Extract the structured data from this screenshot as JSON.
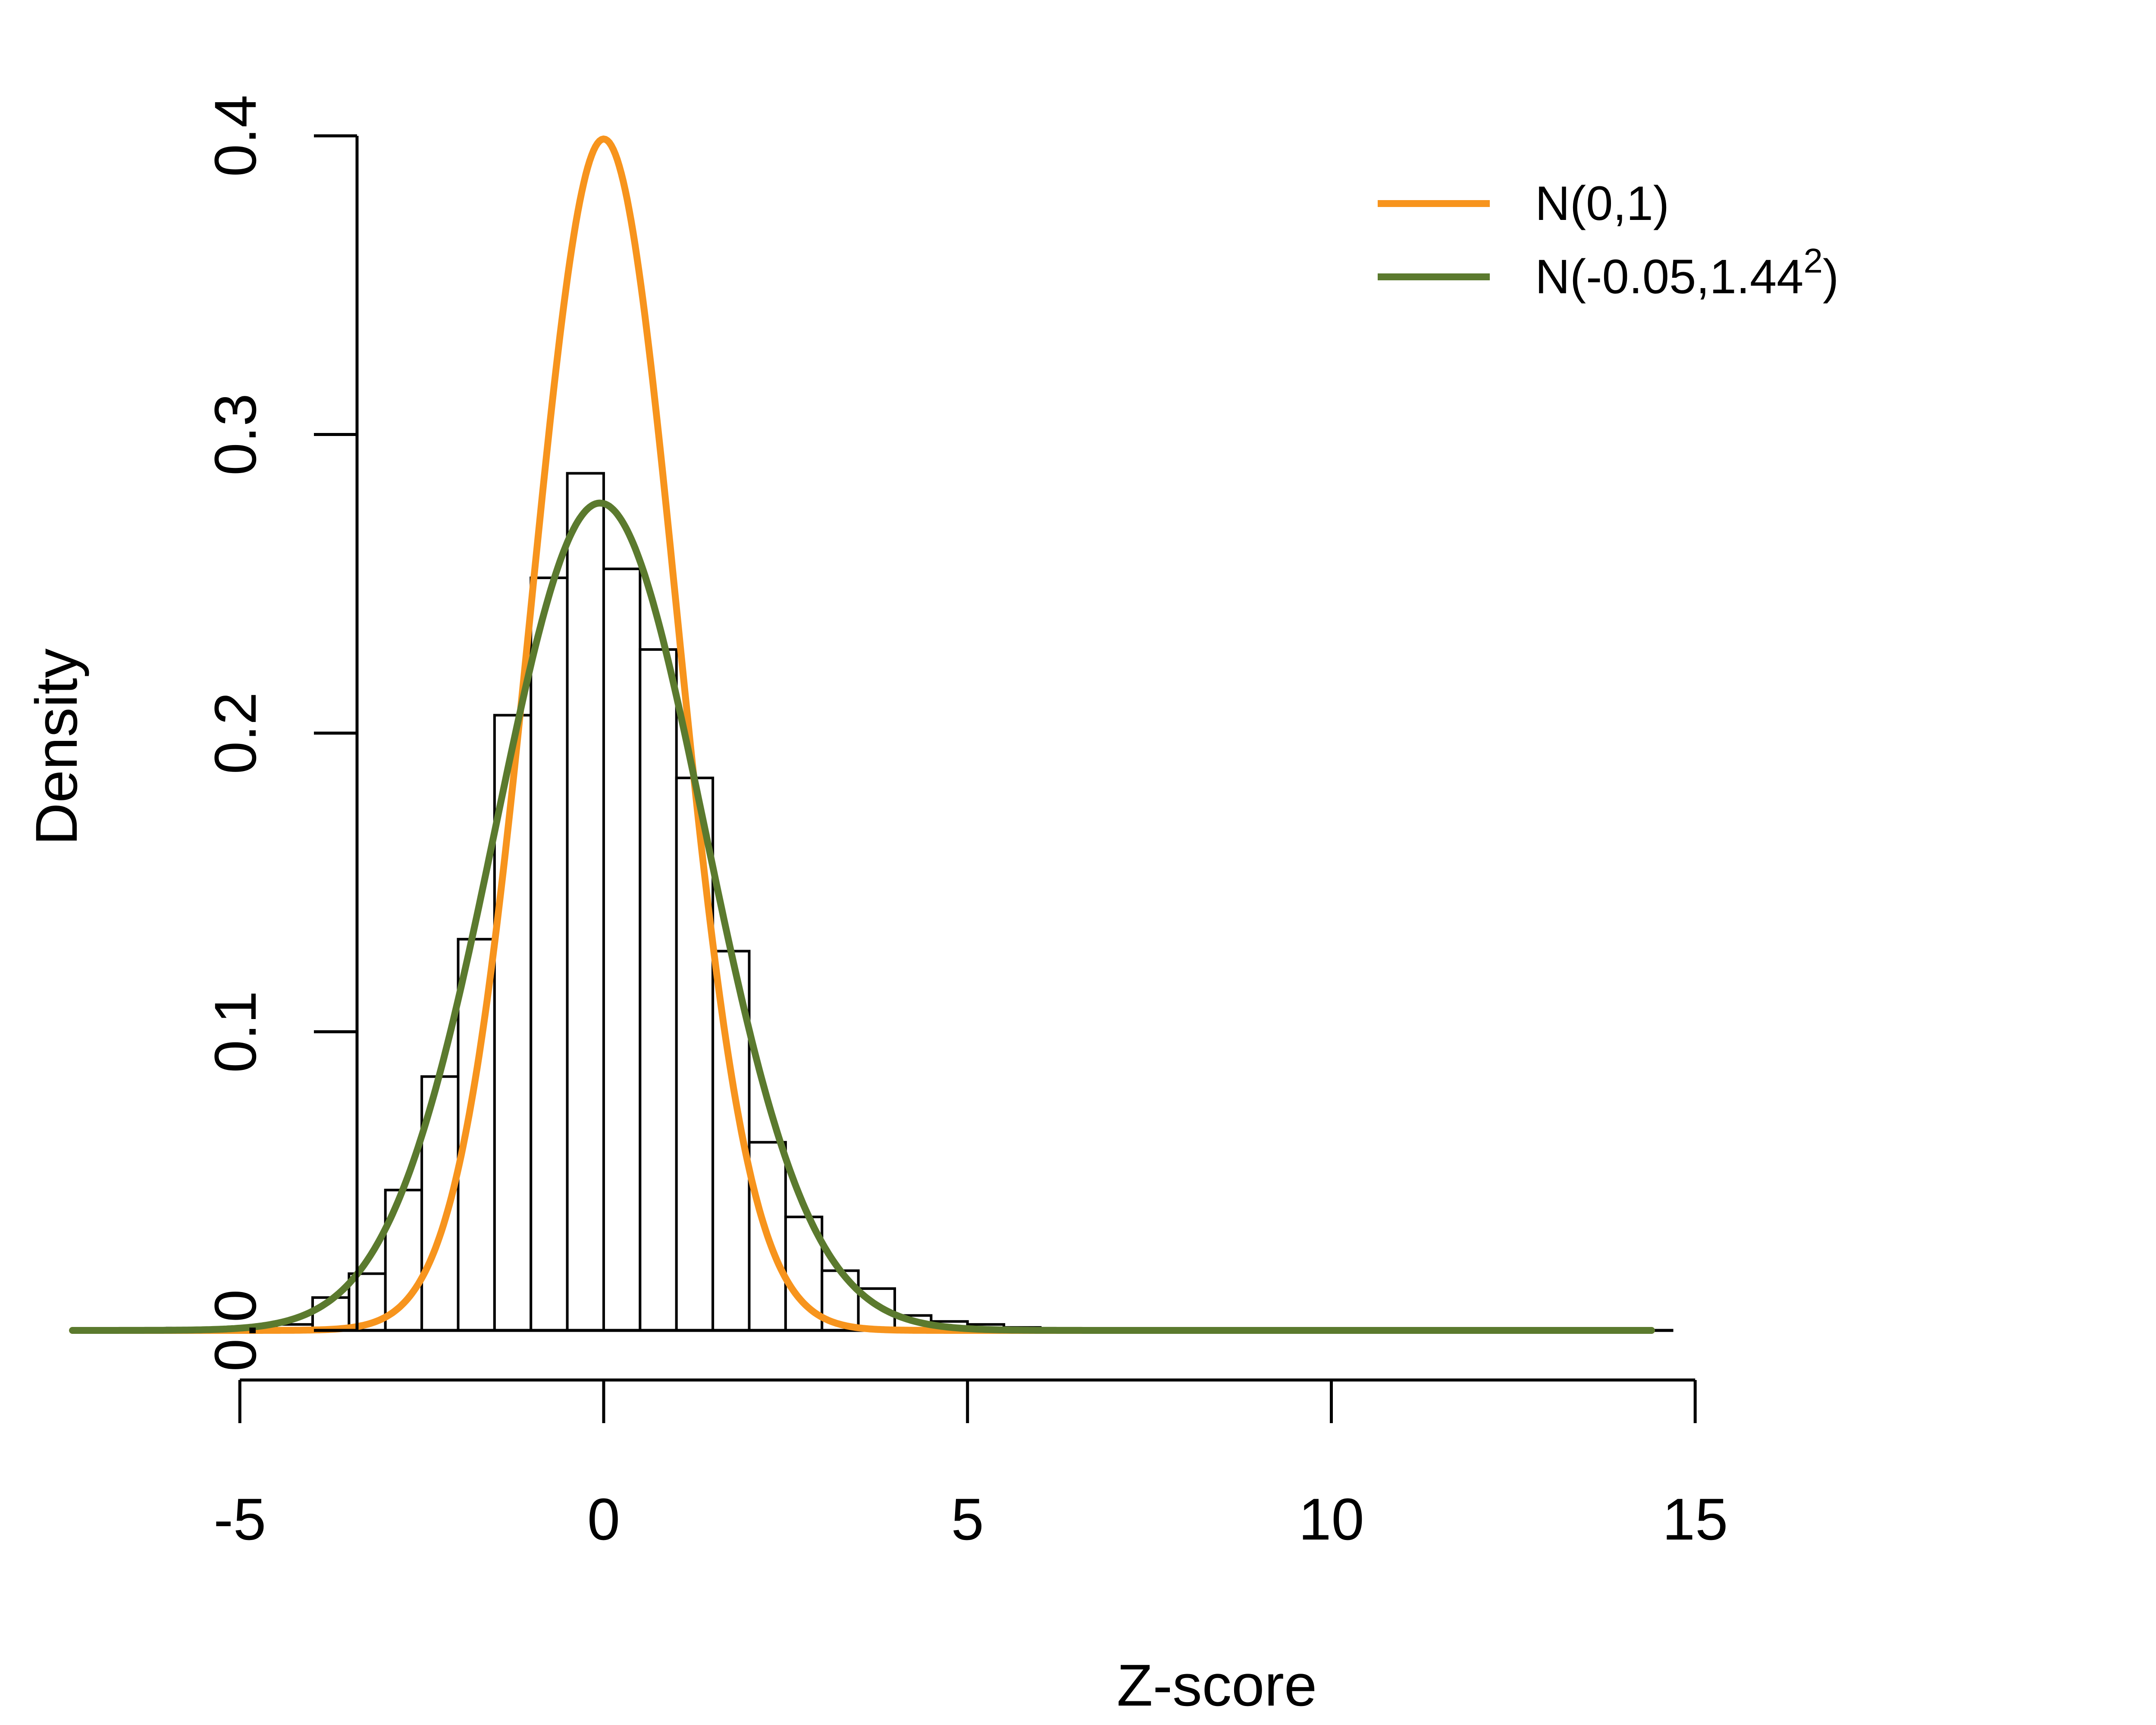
{
  "chart_data": {
    "type": "histogram",
    "xlabel": "Z-score",
    "ylabel": "Density",
    "xlim": [
      -7.5,
      14.5
    ],
    "ylim": [
      0,
      0.4
    ],
    "x_ticks": [
      -5,
      0,
      5,
      10,
      15
    ],
    "x_tick_labels": [
      "-5",
      "0",
      "5",
      "10",
      "15"
    ],
    "y_ticks": [
      0.0,
      0.1,
      0.2,
      0.3,
      0.4
    ],
    "y_tick_labels": [
      "0.0",
      "0.1",
      "0.2",
      "0.3",
      "0.4"
    ],
    "bin_width": 0.5,
    "bins": [
      {
        "x0": -6.0,
        "x1": -5.5,
        "density": 0.0008
      },
      {
        "x0": -5.5,
        "x1": -5.0,
        "density": 0.0008
      },
      {
        "x0": -5.0,
        "x1": -4.5,
        "density": 0.001
      },
      {
        "x0": -4.5,
        "x1": -4.0,
        "density": 0.002
      },
      {
        "x0": -4.0,
        "x1": -3.5,
        "density": 0.011
      },
      {
        "x0": -3.5,
        "x1": -3.0,
        "density": 0.019
      },
      {
        "x0": -3.0,
        "x1": -2.5,
        "density": 0.047
      },
      {
        "x0": -2.5,
        "x1": -2.0,
        "density": 0.085
      },
      {
        "x0": -2.0,
        "x1": -1.5,
        "density": 0.131
      },
      {
        "x0": -1.5,
        "x1": -1.0,
        "density": 0.206
      },
      {
        "x0": -1.0,
        "x1": -0.5,
        "density": 0.252
      },
      {
        "x0": -0.5,
        "x1": 0.0,
        "density": 0.287
      },
      {
        "x0": 0.0,
        "x1": 0.5,
        "density": 0.255
      },
      {
        "x0": 0.5,
        "x1": 1.0,
        "density": 0.228
      },
      {
        "x0": 1.0,
        "x1": 1.5,
        "density": 0.185
      },
      {
        "x0": 1.5,
        "x1": 2.0,
        "density": 0.127
      },
      {
        "x0": 2.0,
        "x1": 2.5,
        "density": 0.063
      },
      {
        "x0": 2.5,
        "x1": 3.0,
        "density": 0.038
      },
      {
        "x0": 3.0,
        "x1": 3.5,
        "density": 0.02
      },
      {
        "x0": 3.5,
        "x1": 4.0,
        "density": 0.014
      },
      {
        "x0": 4.0,
        "x1": 4.5,
        "density": 0.005
      },
      {
        "x0": 4.5,
        "x1": 5.0,
        "density": 0.003
      },
      {
        "x0": 5.0,
        "x1": 5.5,
        "density": 0.002
      },
      {
        "x0": 5.5,
        "x1": 6.0,
        "density": 0.001
      },
      {
        "x0": 6.0,
        "x1": 6.5,
        "density": 0.0005
      },
      {
        "x0": 6.5,
        "x1": 7.0,
        "density": 0.0005
      },
      {
        "x0": 7.0,
        "x1": 7.5,
        "density": 0.0005
      }
    ],
    "series": [
      {
        "name": "N(0,1)",
        "legend_main": "N(0,1)",
        "legend_sup": "",
        "legend_suffix": "",
        "type": "line",
        "mean": 0,
        "sd": 1,
        "x_range": [
          -7.3,
          14.4
        ],
        "color": "#F7941D"
      },
      {
        "name": "N(-0.05,1.44^2)",
        "legend_main": "N(-0.05,1.44",
        "legend_sup": "2",
        "legend_suffix": ")",
        "type": "line",
        "mean": -0.05,
        "sd": 1.44,
        "x_range": [
          -7.3,
          14.4
        ],
        "color": "#5B7A2E"
      }
    ],
    "legend_position": "top-right"
  }
}
